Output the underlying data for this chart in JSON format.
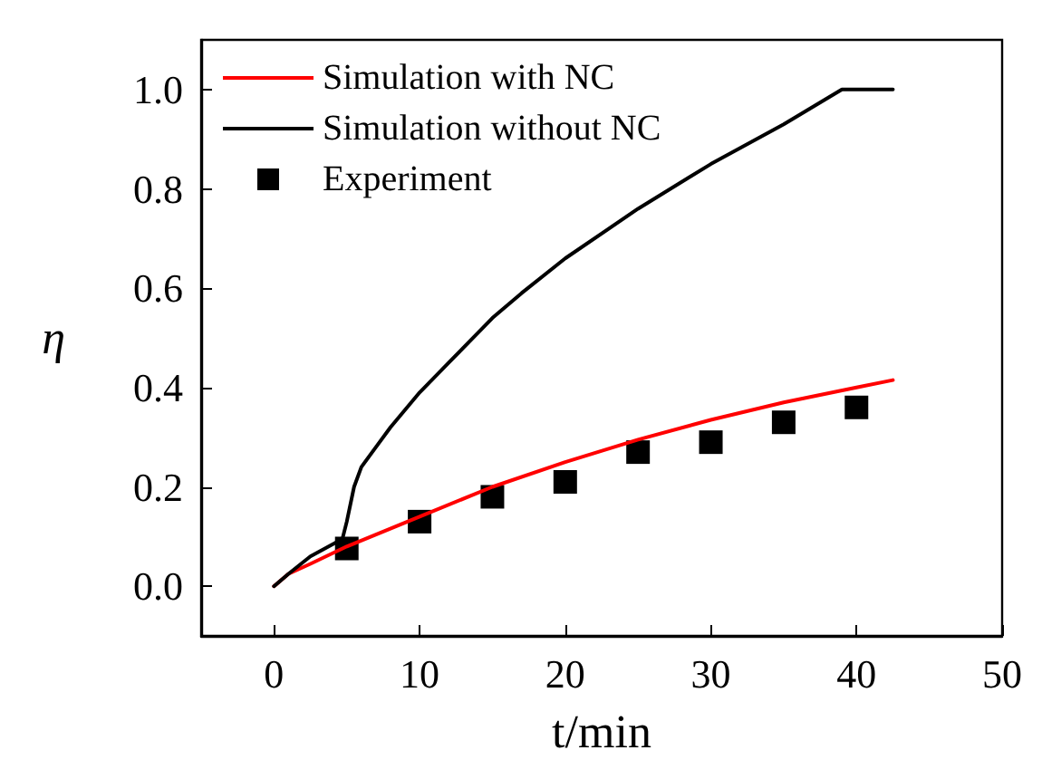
{
  "chart_data": {
    "type": "line",
    "xlabel": "t/min",
    "ylabel": "η",
    "xlim": [
      -5,
      50
    ],
    "xticks": [
      0,
      10,
      20,
      30,
      40,
      50
    ],
    "ylim": [
      -0.1,
      1.1
    ],
    "yticks": [
      {
        "value": 0,
        "label": "0.0"
      },
      {
        "value": 0.2,
        "label": "0.2"
      },
      {
        "value": 0.4,
        "label": "0.4"
      },
      {
        "value": 0.6,
        "label": "0.6"
      },
      {
        "value": 0.8,
        "label": "0.8"
      },
      {
        "value": 1,
        "label": "1.0"
      }
    ],
    "grid": false,
    "legend": "top left",
    "marker": "none",
    "line_style": "solid",
    "series": [
      {
        "name": "Simulation with NC",
        "color": "#ff0000",
        "x": [
          0,
          1,
          2.5,
          5,
          10,
          15,
          20,
          25,
          30,
          35,
          40,
          42.5
        ],
        "values": [
          0,
          0.025,
          0.045,
          0.08,
          0.14,
          0.2,
          0.25,
          0.295,
          0.335,
          0.37,
          0.4,
          0.415
        ]
      },
      {
        "name": "Simulation without NC",
        "color": "#000000",
        "x": [
          0,
          1,
          2.5,
          4.7,
          5,
          5.5,
          6,
          7,
          8,
          10,
          12,
          15,
          17,
          20,
          25,
          30,
          35,
          39,
          42.5
        ],
        "values": [
          0,
          0.025,
          0.06,
          0.095,
          0.13,
          0.2,
          0.24,
          0.28,
          0.32,
          0.39,
          0.45,
          0.54,
          0.59,
          0.66,
          0.76,
          0.85,
          0.93,
          1,
          1
        ]
      },
      {
        "name": "Experiment",
        "color": "#000000",
        "type": "scatter",
        "marker": "square",
        "x": [
          5,
          10,
          15,
          20,
          25,
          30,
          35,
          40
        ],
        "values": [
          0.076,
          0.13,
          0.18,
          0.21,
          0.27,
          0.29,
          0.33,
          0.36
        ]
      }
    ]
  }
}
